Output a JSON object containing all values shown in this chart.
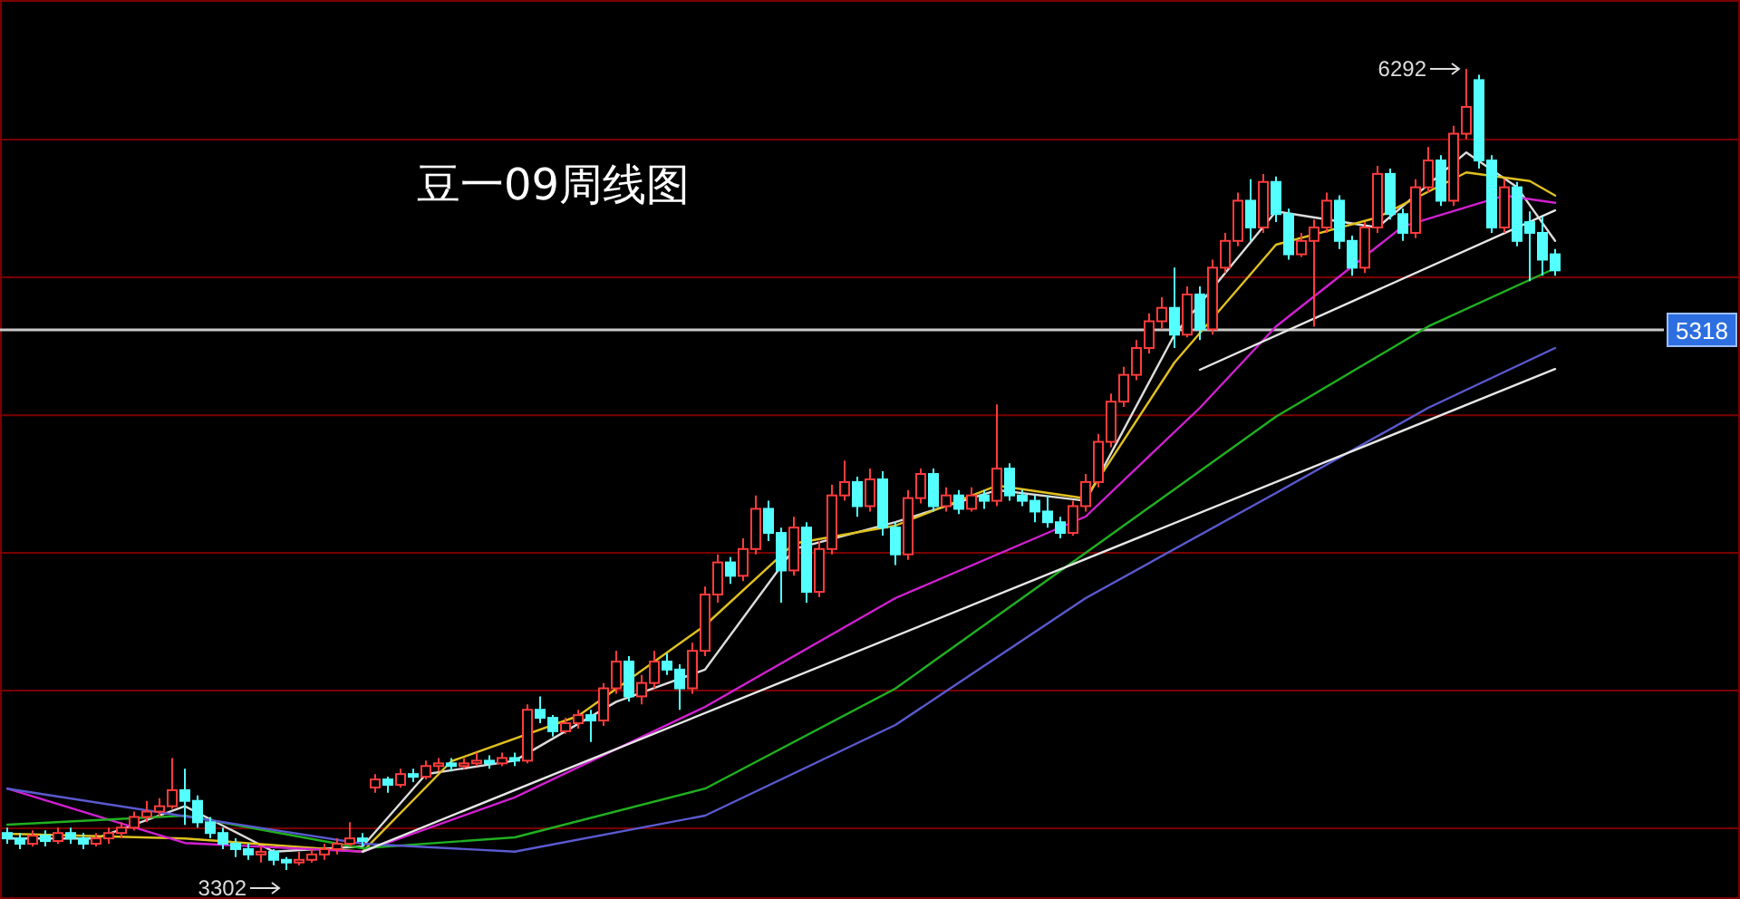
{
  "chart_data": {
    "type": "candlestick",
    "title": "豆一09周线图",
    "categories": [
      null,
      null,
      null,
      null,
      null,
      null,
      null,
      null,
      null,
      null,
      null,
      null,
      null,
      null,
      null,
      null,
      null,
      null,
      null,
      null,
      null,
      null,
      null,
      null,
      null,
      null,
      null,
      null,
      null,
      null,
      null,
      null,
      null,
      null,
      null,
      null,
      null,
      null,
      null,
      null,
      null,
      null,
      null,
      null,
      null,
      null,
      null,
      null,
      null,
      null,
      null,
      null,
      null,
      null,
      null,
      null,
      null,
      null,
      null,
      null,
      null,
      null,
      null,
      null,
      null,
      null,
      null,
      null,
      null,
      null,
      null,
      null,
      null,
      null,
      null,
      null,
      null,
      null,
      null,
      null,
      null,
      null,
      null,
      null,
      null,
      null,
      null,
      null,
      null,
      null,
      null,
      null,
      null,
      null,
      null,
      null,
      null,
      null,
      null,
      null,
      null,
      null,
      null,
      null,
      null,
      null,
      null,
      null,
      null,
      null,
      null,
      null,
      null,
      null,
      null,
      null,
      null,
      null,
      null,
      null,
      null,
      null,
      null
    ],
    "ohlc": [
      [
        3440,
        3460,
        3400,
        3420
      ],
      [
        3420,
        3440,
        3380,
        3400
      ],
      [
        3400,
        3450,
        3390,
        3430
      ],
      [
        3430,
        3450,
        3390,
        3410
      ],
      [
        3410,
        3460,
        3400,
        3440
      ],
      [
        3440,
        3460,
        3400,
        3420
      ],
      [
        3420,
        3440,
        3380,
        3400
      ],
      [
        3400,
        3440,
        3390,
        3420
      ],
      [
        3420,
        3460,
        3400,
        3440
      ],
      [
        3440,
        3480,
        3420,
        3460
      ],
      [
        3460,
        3520,
        3450,
        3500
      ],
      [
        3500,
        3560,
        3480,
        3520
      ],
      [
        3520,
        3570,
        3500,
        3540
      ],
      [
        3540,
        3720,
        3530,
        3600
      ],
      [
        3600,
        3680,
        3470,
        3560
      ],
      [
        3560,
        3580,
        3460,
        3480
      ],
      [
        3480,
        3500,
        3420,
        3440
      ],
      [
        3440,
        3460,
        3380,
        3400
      ],
      [
        3400,
        3420,
        3350,
        3380
      ],
      [
        3380,
        3400,
        3340,
        3360
      ],
      [
        3360,
        3390,
        3330,
        3370
      ],
      [
        3370,
        3380,
        3320,
        3340
      ],
      [
        3340,
        3350,
        3302,
        3330
      ],
      [
        3330,
        3370,
        3320,
        3340
      ],
      [
        3340,
        3380,
        3330,
        3360
      ],
      [
        3360,
        3400,
        3340,
        3380
      ],
      [
        3380,
        3420,
        3360,
        3400
      ],
      [
        3400,
        3480,
        3390,
        3420
      ],
      [
        3420,
        3440,
        3390,
        3410
      ],
      [
        3610,
        3660,
        3590,
        3640
      ],
      [
        3640,
        3650,
        3590,
        3620
      ],
      [
        3620,
        3680,
        3610,
        3660
      ],
      [
        3660,
        3680,
        3630,
        3650
      ],
      [
        3650,
        3710,
        3640,
        3690
      ],
      [
        3690,
        3720,
        3670,
        3700
      ],
      [
        3700,
        3720,
        3670,
        3690
      ],
      [
        3690,
        3720,
        3680,
        3700
      ],
      [
        3700,
        3740,
        3690,
        3710
      ],
      [
        3710,
        3730,
        3680,
        3700
      ],
      [
        3700,
        3740,
        3690,
        3720
      ],
      [
        3720,
        3740,
        3690,
        3710
      ],
      [
        3710,
        3920,
        3700,
        3900
      ],
      [
        3900,
        3950,
        3850,
        3870
      ],
      [
        3870,
        3880,
        3800,
        3820
      ],
      [
        3820,
        3870,
        3810,
        3850
      ],
      [
        3850,
        3900,
        3830,
        3880
      ],
      [
        3880,
        3900,
        3780,
        3860
      ],
      [
        3860,
        4000,
        3840,
        3980
      ],
      [
        3980,
        4120,
        3960,
        4080
      ],
      [
        4080,
        4100,
        3930,
        3950
      ],
      [
        3950,
        4030,
        3920,
        4000
      ],
      [
        4000,
        4120,
        3980,
        4080
      ],
      [
        4080,
        4110,
        4030,
        4050
      ],
      [
        4050,
        4070,
        3900,
        3980
      ],
      [
        3980,
        4150,
        3960,
        4120
      ],
      [
        4120,
        4360,
        4100,
        4330
      ],
      [
        4330,
        4480,
        4300,
        4450
      ],
      [
        4450,
        4470,
        4370,
        4400
      ],
      [
        4400,
        4540,
        4380,
        4500
      ],
      [
        4500,
        4700,
        4480,
        4650
      ],
      [
        4650,
        4680,
        4530,
        4560
      ],
      [
        4560,
        4580,
        4300,
        4420
      ],
      [
        4420,
        4620,
        4400,
        4580
      ],
      [
        4580,
        4600,
        4300,
        4340
      ],
      [
        4340,
        4530,
        4320,
        4500
      ],
      [
        4500,
        4740,
        4480,
        4700
      ],
      [
        4700,
        4830,
        4680,
        4750
      ],
      [
        4750,
        4770,
        4620,
        4660
      ],
      [
        4660,
        4800,
        4640,
        4760
      ],
      [
        4760,
        4790,
        4550,
        4580
      ],
      [
        4580,
        4600,
        4440,
        4480
      ],
      [
        4480,
        4720,
        4460,
        4690
      ],
      [
        4690,
        4800,
        4670,
        4780
      ],
      [
        4780,
        4800,
        4640,
        4660
      ],
      [
        4660,
        4730,
        4640,
        4700
      ],
      [
        4700,
        4720,
        4630,
        4650
      ],
      [
        4650,
        4730,
        4640,
        4700
      ],
      [
        4700,
        4720,
        4650,
        4680
      ],
      [
        4680,
        5040,
        4660,
        4800
      ],
      [
        4800,
        4820,
        4680,
        4700
      ],
      [
        4700,
        4720,
        4660,
        4680
      ],
      [
        4680,
        4700,
        4600,
        4640
      ],
      [
        4640,
        4700,
        4580,
        4600
      ],
      [
        4600,
        4620,
        4540,
        4560
      ],
      [
        4560,
        4680,
        4550,
        4660
      ],
      [
        4660,
        4780,
        4640,
        4750
      ],
      [
        4750,
        4930,
        4730,
        4900
      ],
      [
        4900,
        5080,
        4880,
        5050
      ],
      [
        5050,
        5180,
        5030,
        5150
      ],
      [
        5150,
        5280,
        5130,
        5250
      ],
      [
        5250,
        5380,
        5230,
        5350
      ],
      [
        5350,
        5440,
        5320,
        5400
      ],
      [
        5400,
        5550,
        5250,
        5300
      ],
      [
        5300,
        5480,
        5290,
        5450
      ],
      [
        5450,
        5480,
        5280,
        5320
      ],
      [
        5320,
        5580,
        5300,
        5550
      ],
      [
        5550,
        5680,
        5530,
        5650
      ],
      [
        5650,
        5830,
        5630,
        5800
      ],
      [
        5800,
        5880,
        5650,
        5700
      ],
      [
        5700,
        5900,
        5680,
        5870
      ],
      [
        5870,
        5890,
        5720,
        5750
      ],
      [
        5750,
        5770,
        5580,
        5600
      ],
      [
        5600,
        5680,
        5590,
        5650
      ],
      [
        5650,
        5730,
        5330,
        5700
      ],
      [
        5700,
        5830,
        5680,
        5800
      ],
      [
        5800,
        5820,
        5620,
        5650
      ],
      [
        5650,
        5670,
        5520,
        5550
      ],
      [
        5550,
        5720,
        5530,
        5700
      ],
      [
        5700,
        5930,
        5680,
        5900
      ],
      [
        5900,
        5920,
        5730,
        5750
      ],
      [
        5750,
        5770,
        5650,
        5680
      ],
      [
        5680,
        5880,
        5660,
        5850
      ],
      [
        5850,
        6000,
        5830,
        5950
      ],
      [
        5950,
        5970,
        5780,
        5800
      ],
      [
        5800,
        6080,
        5780,
        6050
      ],
      [
        6050,
        6292,
        6030,
        6150
      ],
      [
        6250,
        6270,
        5920,
        5950
      ],
      [
        5950,
        5970,
        5680,
        5700
      ],
      [
        5700,
        5880,
        5680,
        5850
      ],
      [
        5850,
        5870,
        5630,
        5650
      ],
      [
        5720,
        5760,
        5500,
        5680
      ],
      [
        5680,
        5740,
        5520,
        5580
      ],
      [
        5600,
        5620,
        5520,
        5540
      ]
    ],
    "series": [
      {
        "type": "line",
        "color": "#dcdcdc",
        "values": [
          3420,
          null,
          null,
          null,
          null,
          null,
          null,
          3420,
          null,
          null,
          null,
          null,
          null,
          null,
          3540,
          null,
          null,
          null,
          null,
          null,
          null,
          3370,
          null,
          null,
          null,
          null,
          null,
          null,
          3390,
          null,
          null,
          null,
          null,
          3660,
          null,
          null,
          null,
          null,
          null,
          null,
          3710,
          null,
          null,
          null,
          null,
          null,
          null,
          null,
          3930,
          null,
          null,
          null,
          null,
          null,
          null,
          4050,
          null,
          null,
          null,
          null,
          null,
          null,
          4500,
          null,
          null,
          null,
          null,
          null,
          null,
          null,
          4600,
          null,
          null,
          null,
          null,
          null,
          null,
          null,
          4720,
          null,
          null,
          null,
          null,
          null,
          null,
          4680,
          null,
          null,
          null,
          null,
          null,
          null,
          5300,
          null,
          null,
          null,
          null,
          null,
          null,
          null,
          5760,
          null,
          null,
          null,
          null,
          null,
          null,
          null,
          5700,
          null,
          null,
          null,
          null,
          null,
          null,
          5980,
          null,
          null,
          null,
          5850,
          null,
          null,
          5650
        ]
      },
      {
        "type": "line",
        "color": "#e0c020",
        "values": [
          3437,
          null,
          null,
          null,
          null,
          null,
          null,
          null,
          null,
          null,
          null,
          null,
          null,
          null,
          3420,
          null,
          null,
          null,
          null,
          null,
          null,
          null,
          null,
          null,
          null,
          null,
          null,
          null,
          3370,
          null,
          null,
          null,
          null,
          null,
          null,
          3708,
          null,
          null,
          null,
          null,
          null,
          null,
          null,
          null,
          null,
          3877,
          null,
          null,
          null,
          null,
          null,
          null,
          null,
          null,
          null,
          4215,
          null,
          null,
          null,
          null,
          null,
          null,
          4520,
          null,
          null,
          null,
          null,
          null,
          null,
          null,
          4587,
          null,
          null,
          null,
          null,
          null,
          null,
          null,
          4737,
          null,
          null,
          null,
          null,
          null,
          null,
          4689,
          null,
          null,
          null,
          null,
          null,
          null,
          5196,
          null,
          null,
          null,
          null,
          null,
          null,
          null,
          5636,
          null,
          null,
          null,
          null,
          null,
          null,
          null,
          5737,
          null,
          null,
          null,
          null,
          null,
          null,
          5906,
          null,
          null,
          null,
          null,
          5873,
          null,
          5819
        ]
      },
      {
        "type": "line",
        "color": "#d020d0",
        "values": [
          3606,
          null,
          null,
          null,
          null,
          null,
          null,
          null,
          null,
          null,
          null,
          null,
          null,
          null,
          3403,
          null,
          null,
          null,
          null,
          null,
          null,
          null,
          null,
          null,
          null,
          null,
          null,
          null,
          3370,
          null,
          null,
          null,
          null,
          null,
          null,
          null,
          null,
          null,
          null,
          null,
          3573,
          null,
          null,
          null,
          null,
          null,
          null,
          null,
          null,
          null,
          null,
          null,
          null,
          null,
          null,
          3911,
          null,
          null,
          null,
          null,
          null,
          null,
          null,
          null,
          null,
          null,
          null,
          null,
          null,
          null,
          4317,
          null,
          null,
          null,
          null,
          null,
          null,
          null,
          null,
          null,
          null,
          null,
          null,
          null,
          null,
          4621,
          null,
          null,
          null,
          null,
          null,
          null,
          null,
          null,
          5027,
          null,
          null,
          null,
          null,
          null,
          5331,
          null,
          null,
          null,
          null,
          null,
          null,
          null,
          null,
          null,
          5704,
          null,
          null,
          null,
          null,
          null,
          null,
          null,
          5819,
          null,
          null,
          null,
          5792
        ]
      },
      {
        "type": "line",
        "color": "#20b020",
        "values": [
          3471,
          null,
          null,
          null,
          null,
          null,
          null,
          null,
          null,
          null,
          null,
          null,
          null,
          null,
          3505,
          null,
          null,
          null,
          null,
          null,
          null,
          null,
          null,
          null,
          null,
          null,
          null,
          null,
          3383,
          null,
          null,
          null,
          null,
          null,
          null,
          null,
          null,
          null,
          null,
          null,
          3424,
          null,
          null,
          null,
          null,
          null,
          null,
          null,
          null,
          null,
          null,
          null,
          null,
          null,
          null,
          3606,
          null,
          null,
          null,
          null,
          null,
          null,
          null,
          null,
          null,
          null,
          null,
          null,
          null,
          null,
          3979,
          null,
          null,
          null,
          null,
          null,
          null,
          null,
          null,
          null,
          null,
          null,
          null,
          null,
          null,
          4486,
          null,
          null,
          null,
          null,
          null,
          null,
          null,
          null,
          null,
          null,
          null,
          null,
          null,
          null,
          4994,
          null,
          null,
          null,
          null,
          null,
          null,
          null,
          null,
          null,
          null,
          null,
          5331,
          null,
          null,
          null,
          null,
          null,
          null,
          null,
          null,
          null,
          5548
        ]
      },
      {
        "type": "line",
        "color": "#5a5ad0",
        "values": [
          3606,
          null,
          null,
          null,
          null,
          null,
          null,
          null,
          null,
          null,
          null,
          null,
          null,
          null,
          null,
          null,
          null,
          null,
          null,
          null,
          null,
          null,
          null,
          null,
          null,
          null,
          null,
          null,
          3400,
          null,
          null,
          null,
          null,
          null,
          null,
          null,
          null,
          null,
          null,
          null,
          3370,
          null,
          null,
          null,
          null,
          null,
          null,
          null,
          null,
          null,
          null,
          null,
          null,
          null,
          null,
          3505,
          null,
          null,
          null,
          null,
          null,
          null,
          null,
          null,
          null,
          null,
          null,
          null,
          null,
          null,
          3843,
          null,
          null,
          null,
          null,
          null,
          null,
          null,
          null,
          null,
          null,
          null,
          null,
          null,
          null,
          4317,
          null,
          null,
          null,
          null,
          null,
          null,
          null,
          null,
          null,
          null,
          null,
          null,
          null,
          null,
          4709,
          null,
          null,
          null,
          null,
          null,
          null,
          null,
          null,
          null,
          null,
          null,
          5027,
          null,
          null,
          null,
          null,
          null,
          null,
          null,
          null,
          null,
          5250
        ]
      },
      {
        "type": "line",
        "color": "#e6e6e6",
        "values": [
          null,
          null,
          null,
          null,
          null,
          null,
          null,
          null,
          null,
          null,
          null,
          null,
          null,
          null,
          null,
          null,
          null,
          null,
          null,
          null,
          null,
          null,
          null,
          null,
          null,
          null,
          null,
          null,
          null,
          null,
          null,
          null,
          null,
          null,
          null,
          null,
          null,
          null,
          null,
          null,
          null,
          null,
          null,
          null,
          null,
          null,
          null,
          null,
          null,
          null,
          null,
          null,
          null,
          null,
          null,
          null,
          null,
          null,
          null,
          null,
          null,
          null,
          null,
          null,
          null,
          null,
          null,
          null,
          null,
          null,
          null,
          null,
          null,
          null,
          null,
          null,
          null,
          null,
          null,
          null,
          null,
          null,
          null,
          null,
          null,
          null,
          null,
          null,
          null,
          null,
          null,
          null,
          null,
          null,
          5169,
          null,
          null,
          null,
          null,
          null,
          null,
          null,
          null,
          null,
          null,
          null,
          null,
          null,
          null,
          null,
          null,
          null,
          null,
          null,
          null,
          null,
          null,
          null,
          null,
          null,
          null,
          null,
          5764
        ]
      },
      {
        "type": "line",
        "color": "#e6e6e6",
        "values": [
          null,
          null,
          null,
          null,
          null,
          null,
          null,
          null,
          null,
          null,
          null,
          null,
          null,
          null,
          null,
          null,
          null,
          null,
          null,
          null,
          null,
          null,
          null,
          null,
          null,
          null,
          null,
          null,
          3370,
          null,
          null,
          null,
          null,
          null,
          null,
          null,
          null,
          null,
          null,
          null,
          null,
          null,
          null,
          null,
          null,
          null,
          null,
          null,
          null,
          null,
          null,
          null,
          null,
          null,
          null,
          null,
          null,
          null,
          null,
          null,
          null,
          null,
          null,
          null,
          null,
          null,
          null,
          null,
          null,
          null,
          null,
          null,
          null,
          null,
          null,
          null,
          null,
          null,
          null,
          null,
          null,
          null,
          null,
          null,
          null,
          null,
          null,
          null,
          null,
          null,
          null,
          null,
          null,
          null,
          null,
          null,
          null,
          null,
          null,
          null,
          null,
          null,
          null,
          null,
          null,
          null,
          null,
          null,
          null,
          null,
          null,
          null,
          null,
          null,
          null,
          null,
          null,
          null,
          null,
          null,
          null,
          null,
          5172
        ]
      }
    ],
    "yticks": [
      {
        "value": 3458,
        "label": null
      },
      {
        "value": 3972,
        "label": null
      },
      {
        "value": 4486,
        "label": null
      },
      {
        "value": 4999,
        "label": null
      },
      {
        "value": 5514,
        "label": null
      },
      {
        "value": 6028,
        "label": null
      }
    ],
    "grid": true,
    "ref_lines": [
      {
        "axis": "y",
        "value": 5318,
        "label": "5318",
        "color": "#c8c8c8"
      }
    ],
    "annotations": [
      "6292",
      "3302"
    ]
  }
}
